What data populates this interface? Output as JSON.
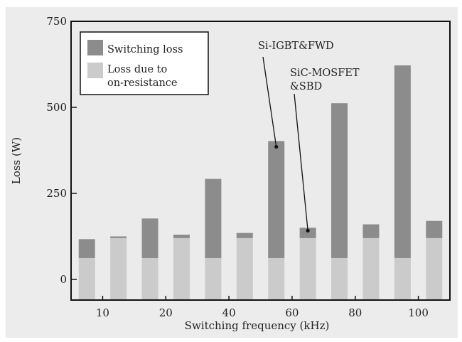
{
  "chart_data": {
    "type": "bar",
    "xlabel": "Switching frequency (kHz)",
    "ylabel": "Loss (W)",
    "ylim": [
      -60,
      750
    ],
    "yticks": [
      0,
      250,
      500,
      750
    ],
    "categories": [
      "10",
      "20",
      "40",
      "60",
      "80",
      "100"
    ],
    "devices": [
      "Si-IGBT&FWD",
      "SiC-MOSFET&SBD"
    ],
    "series": [
      {
        "name": "Loss due to on-resistance",
        "color": "#cbcbcb",
        "values": {
          "Si-IGBT&FWD": [
            62,
            62,
            62,
            62,
            62,
            62
          ],
          "SiC-MOSFET&SBD": [
            120,
            120,
            120,
            120,
            120,
            120
          ]
        }
      },
      {
        "name": "Switching loss",
        "color": "#8c8c8c",
        "values": {
          "Si-IGBT&FWD": [
            55,
            115,
            230,
            340,
            450,
            560
          ],
          "SiC-MOSFET&SBD": [
            5,
            10,
            15,
            30,
            40,
            50
          ]
        }
      }
    ],
    "annotations": [
      {
        "text": "Si-IGBT&FWD",
        "points_to": {
          "category": "60",
          "device": "Si-IGBT&FWD"
        }
      },
      {
        "text_lines": [
          "SiC-MOSFET",
          "&SBD"
        ],
        "points_to": {
          "category": "60",
          "device": "SiC-MOSFET&SBD"
        }
      }
    ],
    "legend_position": "top-left",
    "grid": false
  }
}
